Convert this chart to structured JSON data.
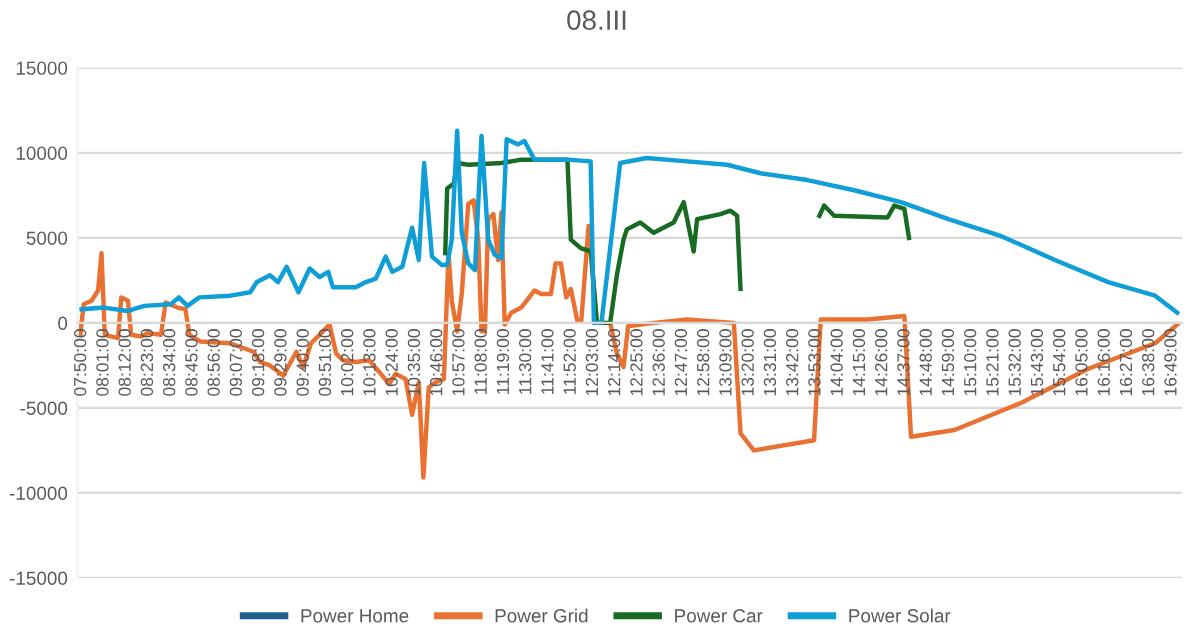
{
  "chart_data": {
    "type": "line",
    "title": "08.III",
    "xlim": [
      7.8,
      16.9
    ],
    "ylim": [
      -15000,
      15000
    ],
    "yticks": [
      -15000,
      -10000,
      -5000,
      0,
      5000,
      10000,
      15000
    ],
    "xticks": [
      {
        "value": 7.8333,
        "label": "07:50:00"
      },
      {
        "value": 8.0167,
        "label": "08:01:00"
      },
      {
        "value": 8.2,
        "label": "08:12:00"
      },
      {
        "value": 8.3833,
        "label": "08:23:00"
      },
      {
        "value": 8.5667,
        "label": "08:34:00"
      },
      {
        "value": 8.75,
        "label": "08:45:00"
      },
      {
        "value": 8.9333,
        "label": "08:56:00"
      },
      {
        "value": 9.1167,
        "label": "09:07:00"
      },
      {
        "value": 9.3,
        "label": "09:18:00"
      },
      {
        "value": 9.4833,
        "label": "09:29:00"
      },
      {
        "value": 9.6667,
        "label": "09:40:00"
      },
      {
        "value": 9.85,
        "label": "09:51:00"
      },
      {
        "value": 10.0333,
        "label": "10:02:00"
      },
      {
        "value": 10.2167,
        "label": "10:13:00"
      },
      {
        "value": 10.4,
        "label": "10:24:00"
      },
      {
        "value": 10.5833,
        "label": "10:35:00"
      },
      {
        "value": 10.7667,
        "label": "10:46:00"
      },
      {
        "value": 10.95,
        "label": "10:57:00"
      },
      {
        "value": 11.1333,
        "label": "11:08:00"
      },
      {
        "value": 11.3167,
        "label": "11:19:00"
      },
      {
        "value": 11.5,
        "label": "11:30:00"
      },
      {
        "value": 11.6833,
        "label": "11:41:00"
      },
      {
        "value": 11.8667,
        "label": "11:52:00"
      },
      {
        "value": 12.05,
        "label": "12:03:00"
      },
      {
        "value": 12.2333,
        "label": "12:14:00"
      },
      {
        "value": 12.4167,
        "label": "12:25:00"
      },
      {
        "value": 12.6,
        "label": "12:36:00"
      },
      {
        "value": 12.7833,
        "label": "12:47:00"
      },
      {
        "value": 12.9667,
        "label": "12:58:00"
      },
      {
        "value": 13.15,
        "label": "13:09:00"
      },
      {
        "value": 13.3333,
        "label": "13:20:00"
      },
      {
        "value": 13.5167,
        "label": "13:31:00"
      },
      {
        "value": 13.7,
        "label": "13:42:00"
      },
      {
        "value": 13.8833,
        "label": "13:53:00"
      },
      {
        "value": 14.0667,
        "label": "14:04:00"
      },
      {
        "value": 14.25,
        "label": "14:15:00"
      },
      {
        "value": 14.4333,
        "label": "14:26:00"
      },
      {
        "value": 14.6167,
        "label": "14:37:00"
      },
      {
        "value": 14.8,
        "label": "14:48:00"
      },
      {
        "value": 14.9833,
        "label": "14:59:00"
      },
      {
        "value": 15.1667,
        "label": "15:10:00"
      },
      {
        "value": 15.35,
        "label": "15:21:00"
      },
      {
        "value": 15.5333,
        "label": "15:32:00"
      },
      {
        "value": 15.7167,
        "label": "15:43:00"
      },
      {
        "value": 15.9,
        "label": "15:54:00"
      },
      {
        "value": 16.0833,
        "label": "16:05:00"
      },
      {
        "value": 16.2667,
        "label": "16:16:00"
      },
      {
        "value": 16.45,
        "label": "16:27:00"
      },
      {
        "value": 16.6333,
        "label": "16:38:00"
      },
      {
        "value": 16.8167,
        "label": "16:49:00"
      }
    ],
    "grid": "y",
    "legend": "bottom",
    "marker": "none",
    "line_style": "solid",
    "series": [
      {
        "name": "Power Home",
        "color": "#1f5f8b"
      },
      {
        "name": "Power Grid",
        "color": "#e97132",
        "x": [
          7.822,
          7.85,
          7.915,
          7.969,
          7.997,
          8.024,
          8.133,
          8.16,
          8.215,
          8.241,
          8.323,
          8.378,
          8.487,
          8.525,
          8.623,
          8.688,
          8.721,
          8.813,
          9.058,
          9.249,
          9.303,
          9.385,
          9.494,
          9.603,
          9.658,
          9.723,
          9.794,
          9.876,
          9.93,
          9.985,
          10.093,
          10.202,
          10.311,
          10.366,
          10.42,
          10.502,
          10.556,
          10.611,
          10.649,
          10.693,
          10.747,
          10.818,
          10.856,
          10.883,
          10.927,
          10.965,
          11.019,
          11.063,
          11.101,
          11.128,
          11.156,
          11.183,
          11.226,
          11.264,
          11.292,
          11.319,
          11.373,
          11.455,
          11.564,
          11.619,
          11.7,
          11.738,
          11.782,
          11.826,
          11.864,
          11.918,
          11.95,
          12.01,
          12.078,
          12.188,
          12.243,
          12.298,
          12.336,
          12.546,
          12.821,
          13.207,
          13.262,
          13.372,
          13.868,
          13.923,
          14.309,
          14.612,
          14.667,
          15.025,
          15.576,
          16.127,
          16.678,
          16.86
        ],
        "values": [
          -700,
          1100,
          1300,
          1900,
          4100,
          -700,
          -900,
          1500,
          1300,
          -700,
          -800,
          -600,
          -700,
          1200,
          900,
          800,
          -700,
          -1100,
          -1200,
          -1700,
          -2300,
          -2500,
          -3100,
          -1700,
          -2600,
          -1200,
          -700,
          -100,
          -1800,
          -2200,
          -2300,
          -2200,
          -3100,
          -3600,
          -3000,
          -3300,
          -5400,
          -3500,
          -9100,
          -3800,
          -3500,
          -3300,
          4100,
          1300,
          -500,
          1700,
          7000,
          7200,
          4900,
          -500,
          -500,
          6100,
          6400,
          3700,
          6500,
          -100,
          600,
          900,
          1900,
          1700,
          1700,
          3500,
          3500,
          1500,
          2000,
          100,
          100,
          5700,
          0,
          0,
          -1800,
          -2600,
          -200,
          0,
          200,
          0,
          -6500,
          -7500,
          -6900,
          200,
          200,
          400,
          -6700,
          -6300,
          -4700,
          -2700,
          -1200,
          -100
        ]
      },
      {
        "name": "Power Car",
        "color": "#196b24",
        "x": [
          10.829,
          10.845,
          10.9,
          10.927,
          11.019,
          11.292,
          11.455,
          11.836,
          11.864,
          11.945,
          12.03,
          12.078,
          12.188,
          12.243,
          12.298,
          12.325,
          12.436,
          12.546,
          12.711,
          12.794,
          12.876,
          12.904,
          13.097,
          13.179,
          13.234,
          13.262,
          13.6,
          13.912,
          13.951,
          14.033,
          14.474,
          14.529,
          14.612,
          14.65
        ],
        "values": [
          4100,
          7900,
          8200,
          9400,
          9300,
          9400,
          9600,
          9600,
          4900,
          4400,
          4200,
          0,
          0,
          2800,
          4900,
          5500,
          5900,
          5300,
          5900,
          7100,
          4200,
          6100,
          6400,
          6600,
          6300,
          2000,
          null,
          6300,
          6900,
          6300,
          6200,
          6900,
          6700,
          5000
        ]
      },
      {
        "name": "Power Solar",
        "color": "#0f9ed5",
        "x": [
          7.833,
          8.013,
          8.215,
          8.35,
          8.569,
          8.634,
          8.705,
          8.803,
          9.058,
          9.222,
          9.277,
          9.385,
          9.451,
          9.522,
          9.62,
          9.712,
          9.794,
          9.865,
          9.903,
          10.093,
          10.175,
          10.257,
          10.338,
          10.393,
          10.475,
          10.556,
          10.611,
          10.655,
          10.72,
          10.802,
          10.845,
          10.883,
          10.927,
          10.965,
          11.019,
          11.074,
          11.128,
          11.183,
          11.237,
          11.292,
          11.335,
          11.428,
          11.482,
          11.564,
          11.836,
          12.027,
          12.054,
          12.116,
          12.27,
          12.491,
          12.821,
          13.152,
          13.427,
          13.813,
          14.199,
          14.584,
          14.975,
          15.411,
          15.852,
          16.292,
          16.678,
          16.86
        ],
        "values": [
          800,
          900,
          700,
          1000,
          1100,
          1500,
          1000,
          1500,
          1600,
          1800,
          2400,
          2800,
          2400,
          3300,
          1800,
          3200,
          2700,
          3000,
          2100,
          2100,
          2400,
          2600,
          3900,
          3000,
          3300,
          5600,
          3700,
          9400,
          3900,
          3400,
          3400,
          4900,
          11300,
          5300,
          3500,
          3100,
          11000,
          4900,
          4000,
          3800,
          10800,
          10500,
          10700,
          9600,
          9600,
          9500,
          0,
          0,
          9400,
          9700,
          9500,
          9300,
          8800,
          8400,
          7800,
          7100,
          6100,
          5100,
          3700,
          2400,
          1600,
          600
        ]
      }
    ]
  }
}
